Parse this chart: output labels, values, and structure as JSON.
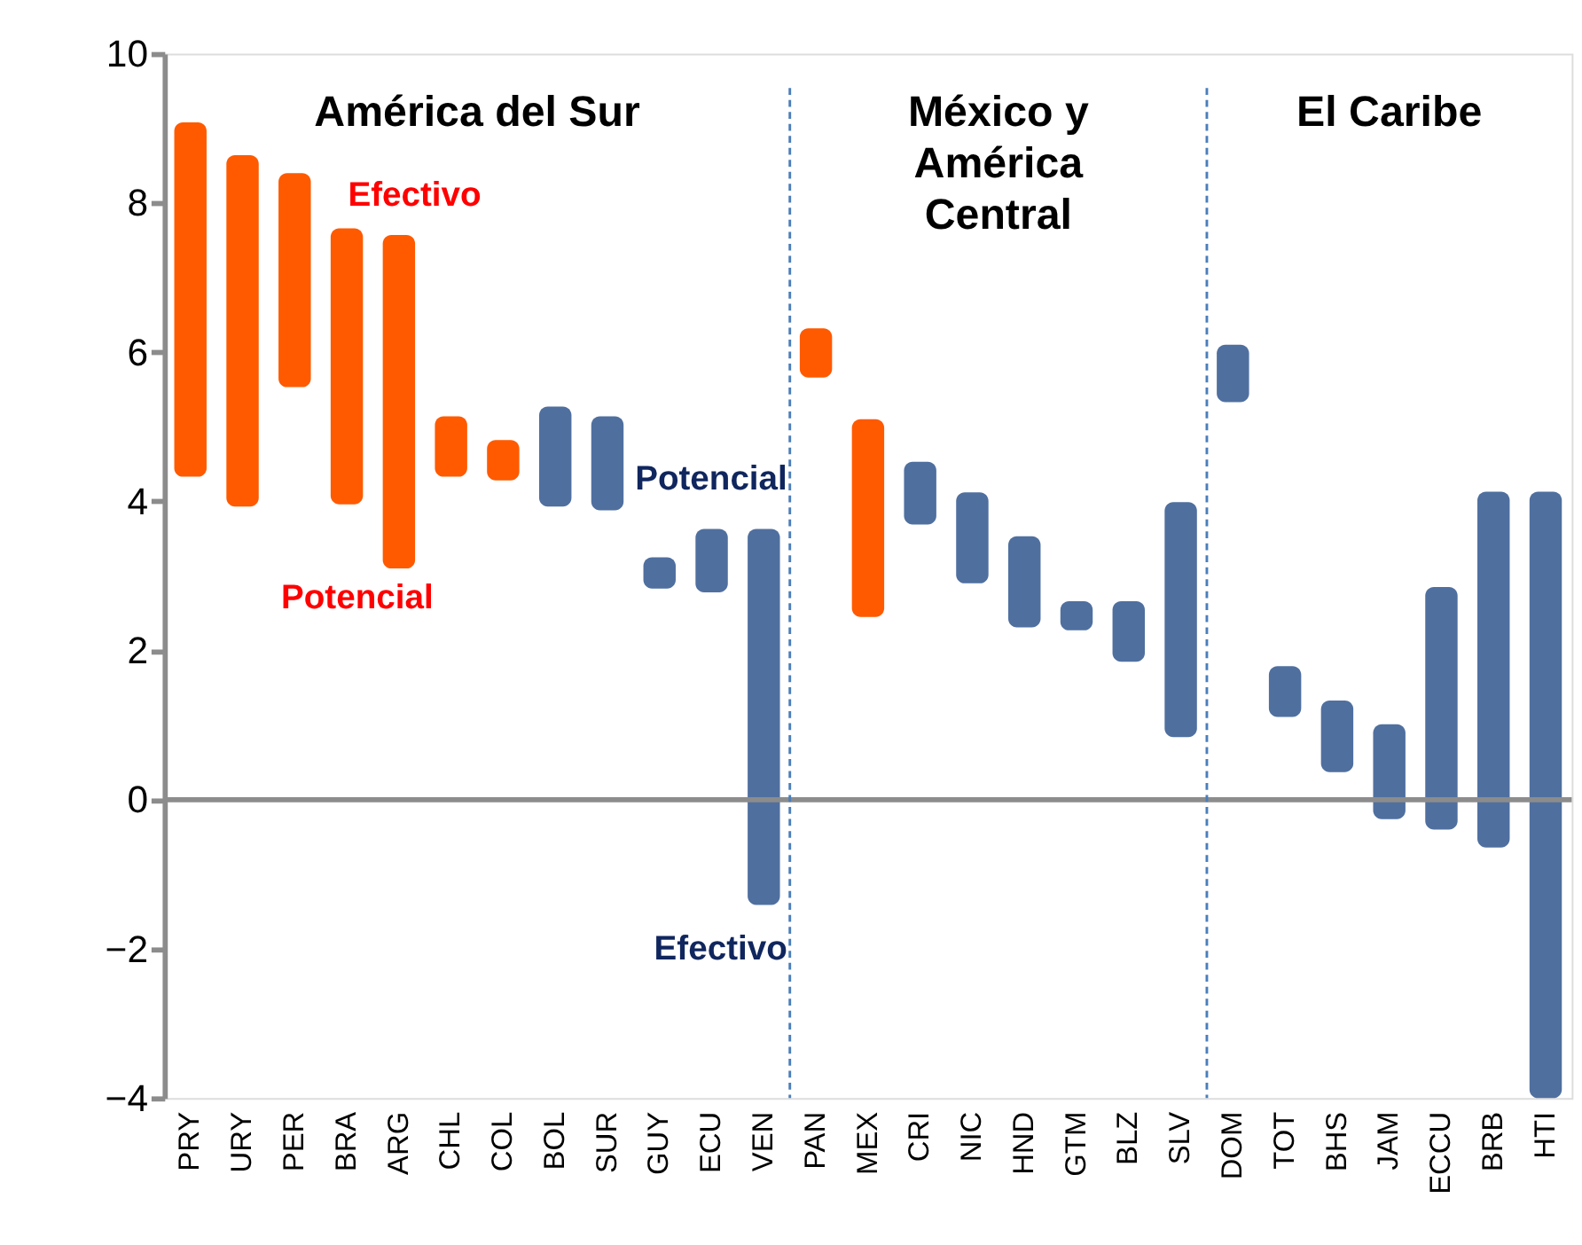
{
  "chart_data": {
    "type": "bar",
    "categories": [
      "PRY",
      "URY",
      "PER",
      "BRA",
      "ARG",
      "CHL",
      "COL",
      "BOL",
      "SUR",
      "GUY",
      "ECU",
      "VEN",
      "PAN",
      "MEX",
      "CRI",
      "NIC",
      "HND",
      "GTM",
      "BLZ",
      "SLV",
      "DOM",
      "TOT",
      "BHS",
      "JAM",
      "ECCU",
      "BRB",
      "HTI"
    ],
    "base": [
      4.33,
      3.93,
      5.53,
      3.96,
      3.1,
      4.33,
      4.28,
      5.27,
      5.14,
      3.25,
      3.63,
      3.63,
      5.66,
      2.45,
      4.53,
      4.12,
      3.53,
      2.66,
      2.66,
      3.99,
      6.1,
      1.79,
      1.33,
      1.01,
      2.85,
      4.13,
      4.13
    ],
    "values": [
      4.75,
      4.71,
      2.87,
      3.7,
      4.47,
      0.81,
      0.54,
      -1.34,
      -1.26,
      -0.42,
      -0.85,
      -5.04,
      0.66,
      2.65,
      -0.84,
      -1.22,
      -1.22,
      -0.39,
      -0.81,
      -3.15,
      -0.77,
      -0.68,
      -0.96,
      -1.27,
      -3.25,
      -4.77,
      -8.13
    ],
    "colors": [
      "#ff5a00",
      "#ff5a00",
      "#ff5a00",
      "#ff5a00",
      "#ff5a00",
      "#ff5a00",
      "#ff5a00",
      "#4f6f9f",
      "#4f6f9f",
      "#4f6f9f",
      "#4f6f9f",
      "#4f6f9f",
      "#ff5a00",
      "#ff5a00",
      "#4f6f9f",
      "#4f6f9f",
      "#4f6f9f",
      "#4f6f9f",
      "#4f6f9f",
      "#4f6f9f",
      "#4f6f9f",
      "#4f6f9f",
      "#4f6f9f",
      "#4f6f9f",
      "#4f6f9f",
      "#4f6f9f",
      "#4f6f9f"
    ],
    "ylim": [
      -4,
      10
    ],
    "yticks": [
      -4,
      -2,
      0,
      2,
      4,
      6,
      8,
      10
    ],
    "grid": false,
    "ref_lines": [
      {
        "axis": "y",
        "value": 0,
        "color": "#8c8c8c"
      }
    ],
    "annotations": [
      "América del Sur",
      "México y\nAmérica\nCentral",
      "El Caribe",
      "Efectivo",
      "Potencial",
      "Potencial",
      "Efectivo"
    ]
  }
}
